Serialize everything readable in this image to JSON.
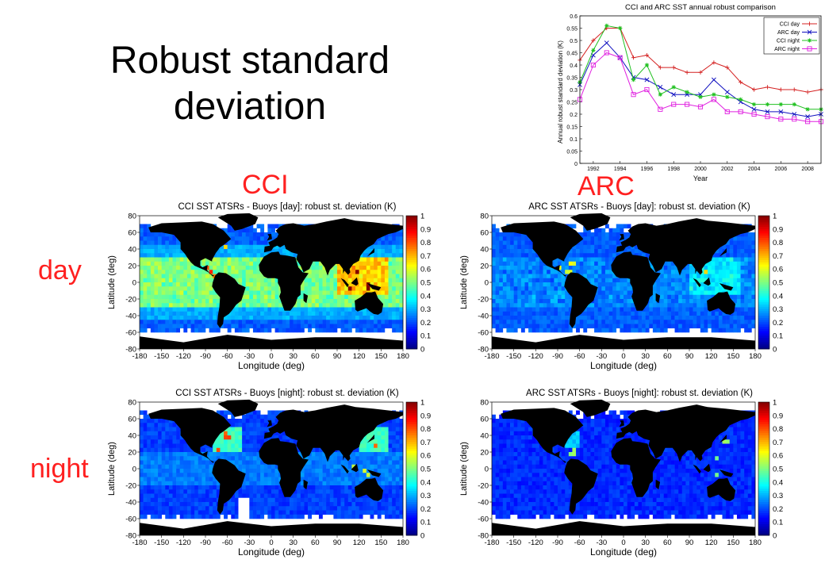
{
  "slide": {
    "title_line1": "Robust standard",
    "title_line2": "deviation",
    "col_labels": [
      "CCI",
      "ARC"
    ],
    "row_labels": [
      "day",
      "night"
    ]
  },
  "colors": {
    "label_red": "#ff2020",
    "land": "#000000"
  },
  "maps": [
    {
      "title": "CCI SST ATSRs - Buoys [day]: robust st. deviation (K)"
    },
    {
      "title": "ARC SST ATSRs - Buoys [day]: robust st. deviation (K)"
    },
    {
      "title": "CCI SST ATSRs - Buoys [night]: robust st. deviation (K)"
    },
    {
      "title": "ARC SST ATSRs - Buoys [night]: robust st. deviation (K)"
    }
  ],
  "map_axes": {
    "xlabel": "Longitude (deg)",
    "ylabel": "Latitude (deg)",
    "xticks": [
      "-180",
      "-150",
      "-120",
      "-90",
      "-60",
      "-30",
      "0",
      "30",
      "60",
      "90",
      "120",
      "150",
      "180"
    ],
    "yticks": [
      "80",
      "60",
      "40",
      "20",
      "0",
      "-20",
      "-40",
      "-60",
      "-80"
    ],
    "cbticks": [
      "1",
      "0.9",
      "0.8",
      "0.7",
      "0.6",
      "0.5",
      "0.4",
      "0.3",
      "0.2",
      "0.1",
      "0"
    ]
  },
  "chart_data": [
    {
      "type": "line",
      "title": "CCI and ARC SST annual robust comparison",
      "xlabel": "Year",
      "ylabel": "Annual robust standard deviation (K)",
      "x": [
        1991,
        1992,
        1993,
        1994,
        1995,
        1996,
        1997,
        1998,
        1999,
        2000,
        2001,
        2002,
        2003,
        2004,
        2005,
        2006,
        2007,
        2008,
        2009
      ],
      "xlim": [
        1991,
        2009
      ],
      "ylim": [
        0,
        0.6
      ],
      "xticks": [
        1992,
        1994,
        1996,
        1998,
        2000,
        2002,
        2004,
        2006,
        2008
      ],
      "yticks": [
        0,
        0.05,
        0.1,
        0.15,
        0.2,
        0.25,
        0.3,
        0.35,
        0.4,
        0.45,
        0.5,
        0.55,
        0.6
      ],
      "legend": "top-right",
      "series": [
        {
          "name": "CCI day",
          "color": "#d42020",
          "marker": "plus",
          "values": [
            0.42,
            0.5,
            0.55,
            0.55,
            0.43,
            0.44,
            0.39,
            0.39,
            0.37,
            0.37,
            0.41,
            0.39,
            0.33,
            0.3,
            0.31,
            0.3,
            0.3,
            0.29,
            0.3
          ]
        },
        {
          "name": "ARC day",
          "color": "#1010c0",
          "marker": "x",
          "values": [
            0.32,
            0.44,
            0.49,
            0.43,
            0.35,
            0.34,
            0.31,
            0.28,
            0.28,
            0.28,
            0.34,
            0.29,
            0.25,
            0.22,
            0.21,
            0.21,
            0.2,
            0.19,
            0.2
          ]
        },
        {
          "name": "CCI night",
          "color": "#20c020",
          "marker": "star",
          "values": [
            0.33,
            0.46,
            0.56,
            0.55,
            0.34,
            0.4,
            0.28,
            0.31,
            0.29,
            0.27,
            0.28,
            0.27,
            0.26,
            0.24,
            0.24,
            0.24,
            0.24,
            0.22,
            0.22
          ]
        },
        {
          "name": "ARC night",
          "color": "#e020e0",
          "marker": "square",
          "values": [
            0.26,
            0.4,
            0.45,
            0.43,
            0.28,
            0.3,
            0.22,
            0.24,
            0.24,
            0.23,
            0.26,
            0.21,
            0.21,
            0.2,
            0.19,
            0.18,
            0.18,
            0.17,
            0.17
          ]
        }
      ]
    }
  ]
}
